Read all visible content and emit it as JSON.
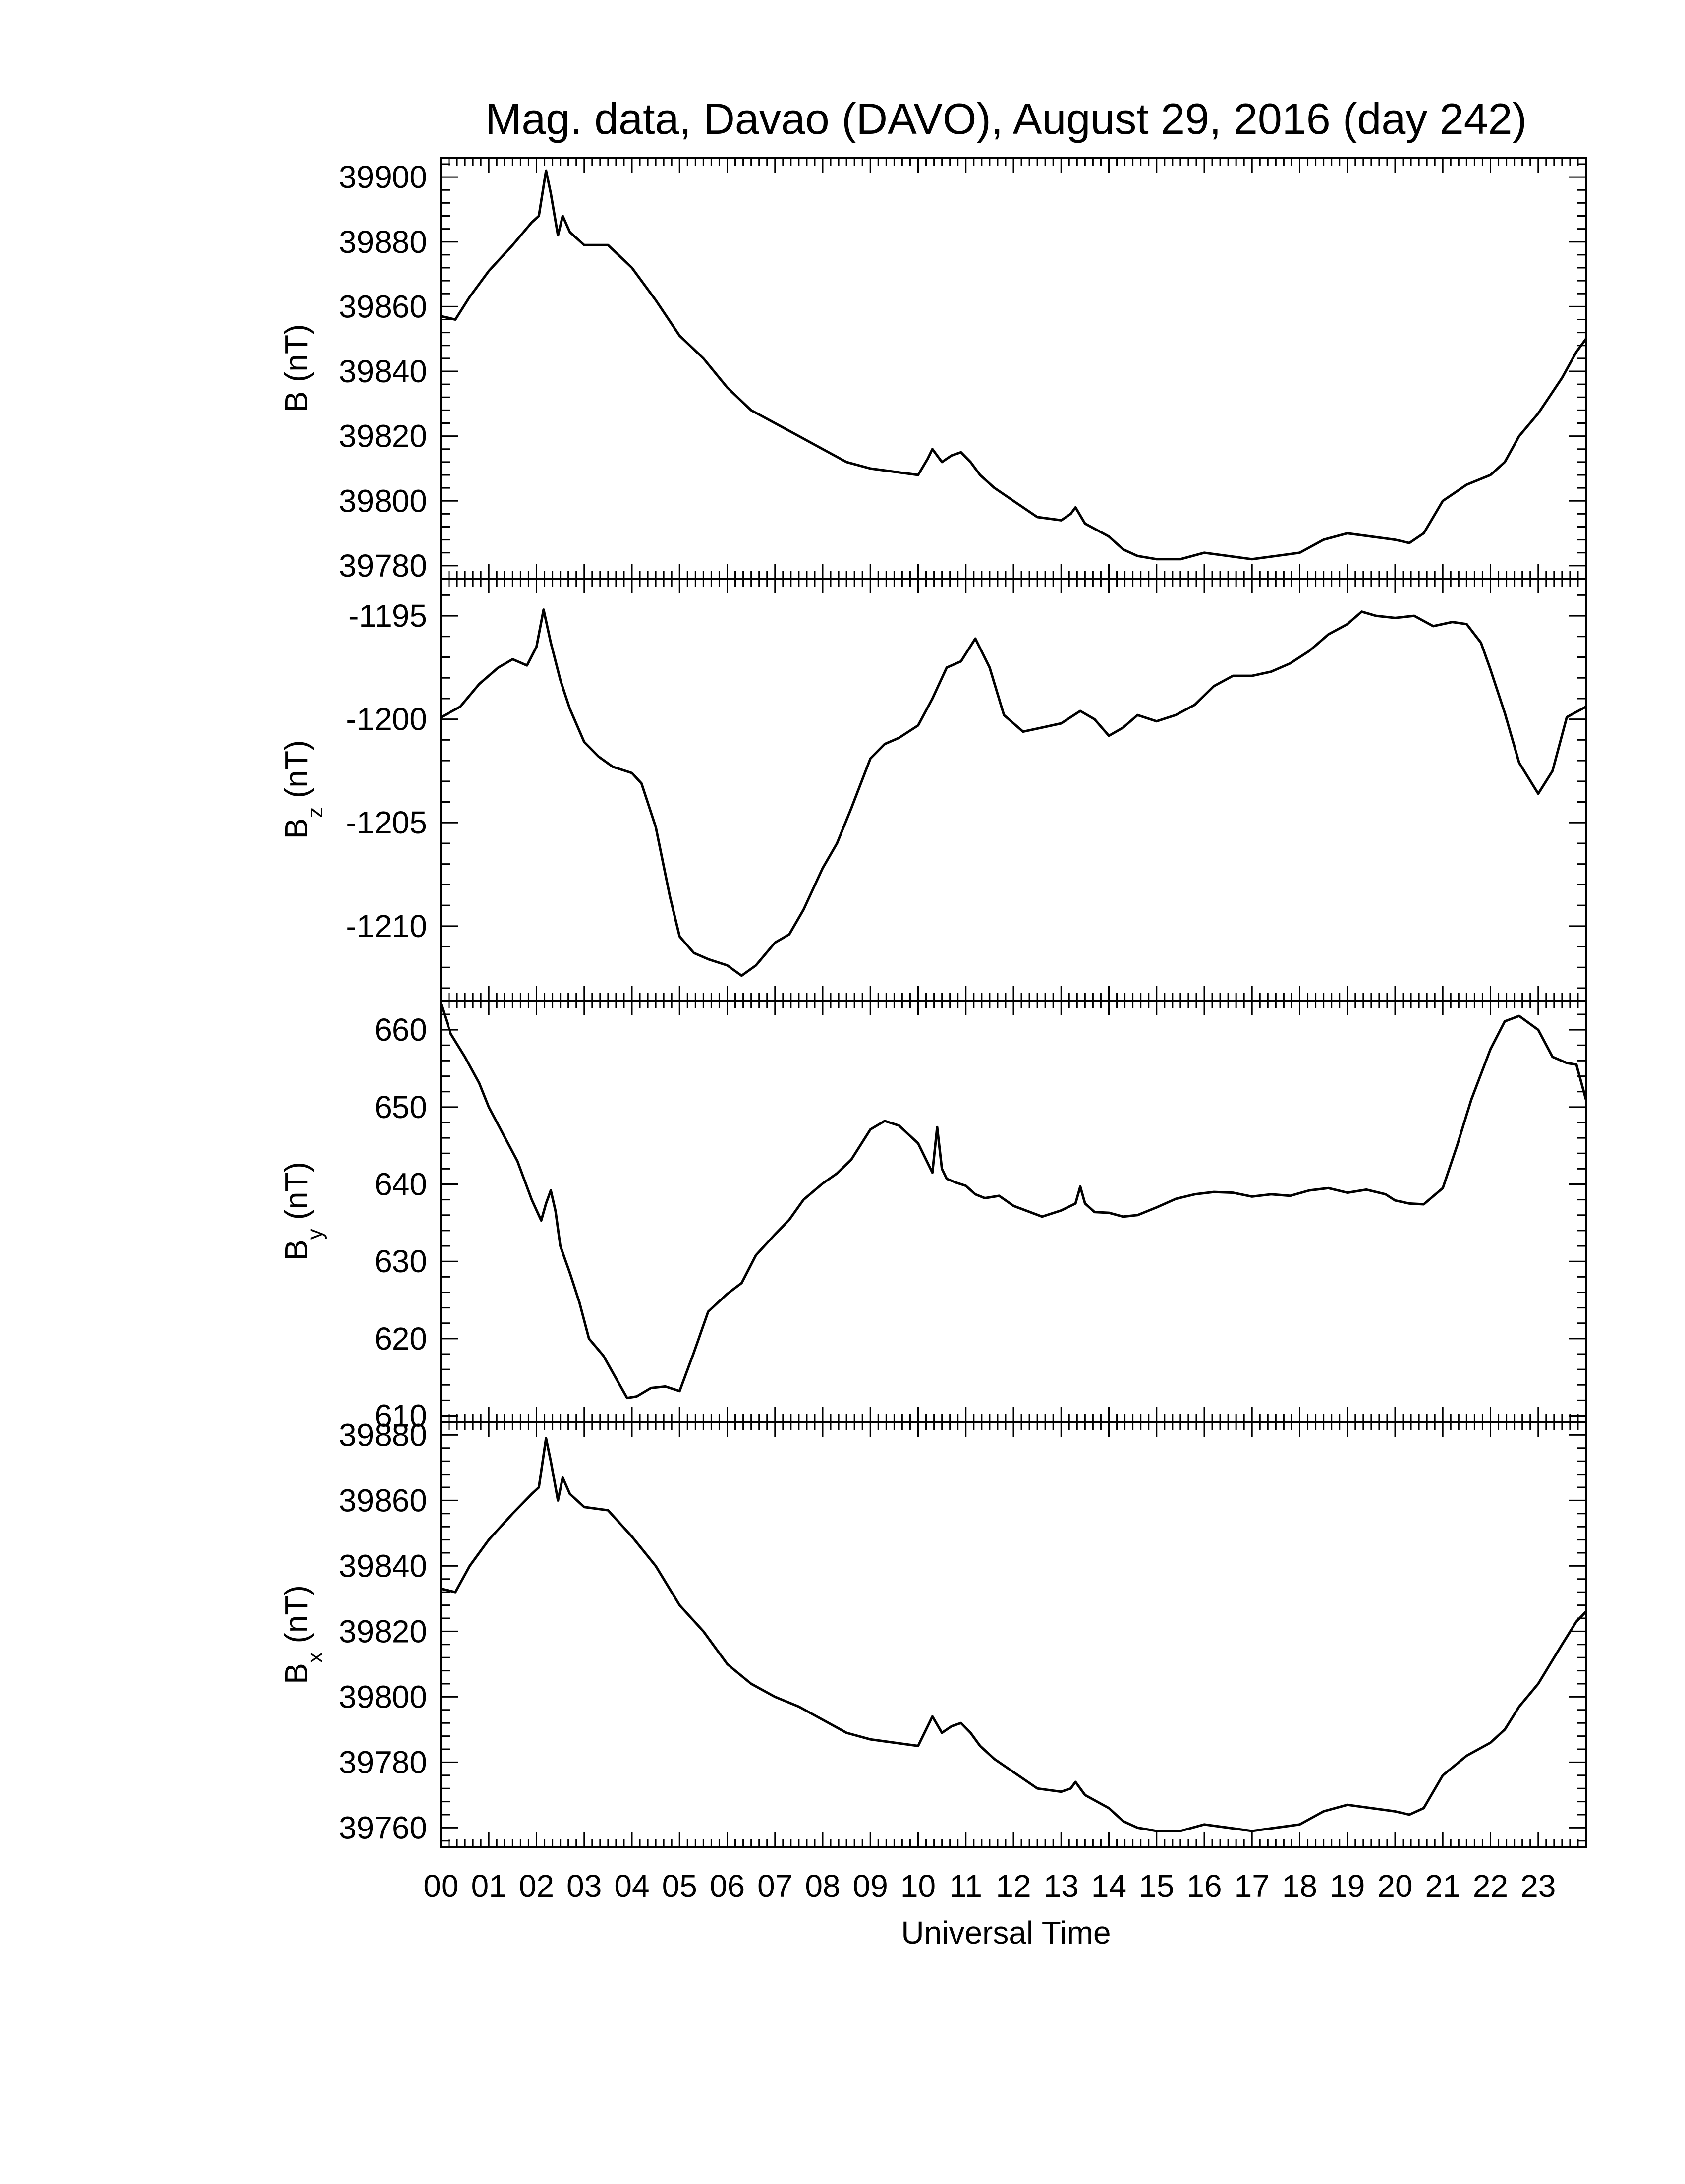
{
  "chart_data": {
    "type": "line",
    "title": "Mag. data, Davao (DAVO), August 29, 2016 (day 242)",
    "xlabel": "Universal Time",
    "x_unit": "hours UT",
    "xlim": [
      0,
      24
    ],
    "x_tick_labels": [
      "00",
      "01",
      "02",
      "03",
      "04",
      "05",
      "06",
      "07",
      "08",
      "09",
      "10",
      "11",
      "12",
      "13",
      "14",
      "15",
      "16",
      "17",
      "18",
      "19",
      "20",
      "21",
      "22",
      "23"
    ],
    "panels": [
      {
        "id": "B",
        "ylabel": "B (nT)",
        "ylabel_main": "B",
        "ylabel_sub": "",
        "ylabel_unit": " (nT)",
        "ylim": [
          39776,
          39906
        ],
        "yticks": [
          39780,
          39800,
          39820,
          39840,
          39860,
          39880,
          39900
        ],
        "series": [
          {
            "x": [
              0,
              0.3,
              0.6,
              1,
              1.5,
              1.9,
              2.05,
              2.2,
              2.3,
              2.45,
              2.55,
              2.7,
              3,
              3.5,
              4,
              4.5,
              5,
              5.5,
              6,
              6.5,
              7,
              7.5,
              8,
              8.5,
              9,
              9.5,
              10,
              10.2,
              10.3,
              10.5,
              10.7,
              10.9,
              11.1,
              11.3,
              11.6,
              12,
              12.5,
              13,
              13.2,
              13.3,
              13.5,
              14,
              14.3,
              14.6,
              15,
              15.5,
              16,
              16.5,
              17,
              17.5,
              18,
              18.5,
              19,
              19.5,
              20,
              20.3,
              20.6,
              21,
              21.5,
              22,
              22.3,
              22.6,
              23,
              23.5,
              23.8,
              24
            ],
            "y": [
              39857,
              39856,
              39863,
              39871,
              39879,
              39886,
              39888,
              39902,
              39895,
              39882,
              39888,
              39883,
              39879,
              39879,
              39872,
              39862,
              39851,
              39844,
              39835,
              39828,
              39824,
              39820,
              39816,
              39812,
              39810,
              39809,
              39808,
              39813,
              39816,
              39812,
              39814,
              39815,
              39812,
              39808,
              39804,
              39800,
              39795,
              39794,
              39796,
              39798,
              39793,
              39789,
              39785,
              39783,
              39782,
              39782,
              39784,
              39783,
              39782,
              39783,
              39784,
              39788,
              39790,
              39789,
              39788,
              39787,
              39790,
              39800,
              39805,
              39808,
              39812,
              39820,
              39827,
              39838,
              39846,
              39850
            ]
          }
        ]
      },
      {
        "id": "Bz",
        "ylabel": "Bz (nT)",
        "ylabel_main": "B",
        "ylabel_sub": "z",
        "ylabel_unit": " (nT)",
        "ylim": [
          -1213.6,
          -1193.2
        ],
        "yticks": [
          -1210,
          -1205,
          -1200,
          -1195
        ],
        "series": [
          {
            "x": [
              0,
              0.4,
              0.8,
              1.2,
              1.5,
              1.8,
              2,
              2.15,
              2.3,
              2.5,
              2.7,
              3,
              3.3,
              3.6,
              4,
              4.2,
              4.5,
              4.8,
              5,
              5.3,
              5.6,
              6,
              6.3,
              6.6,
              7,
              7.3,
              7.6,
              8,
              8.3,
              8.6,
              9,
              9.3,
              9.6,
              10,
              10.3,
              10.6,
              10.9,
              11.2,
              11.5,
              11.8,
              12.2,
              12.6,
              13,
              13.4,
              13.7,
              14,
              14.3,
              14.6,
              15,
              15.4,
              15.8,
              16.2,
              16.6,
              17,
              17.4,
              17.8,
              18.2,
              18.6,
              19,
              19.3,
              19.6,
              20,
              20.4,
              20.8,
              21.2,
              21.5,
              21.8,
              22,
              22.3,
              22.6,
              23,
              23.3,
              23.6,
              24
            ],
            "y": [
              -1199.9,
              -1199.4,
              -1198.3,
              -1197.5,
              -1197.1,
              -1197.4,
              -1196.5,
              -1194.7,
              -1196.3,
              -1198.1,
              -1199.5,
              -1201.1,
              -1201.8,
              -1202.3,
              -1202.6,
              -1203.1,
              -1205.2,
              -1208.6,
              -1210.5,
              -1211.3,
              -1211.6,
              -1211.9,
              -1212.4,
              -1211.9,
              -1210.8,
              -1210.4,
              -1209.2,
              -1207.2,
              -1206,
              -1204.3,
              -1201.9,
              -1201.2,
              -1200.9,
              -1200.3,
              -1199,
              -1197.5,
              -1197.2,
              -1196.1,
              -1197.5,
              -1199.8,
              -1200.6,
              -1200.4,
              -1200.2,
              -1199.6,
              -1200,
              -1200.8,
              -1200.4,
              -1199.8,
              -1200.1,
              -1199.8,
              -1199.3,
              -1198.4,
              -1197.9,
              -1197.9,
              -1197.7,
              -1197.3,
              -1196.7,
              -1195.9,
              -1195.4,
              -1194.8,
              -1195,
              -1195.1,
              -1195,
              -1195.5,
              -1195.3,
              -1195.4,
              -1196.3,
              -1197.6,
              -1199.7,
              -1202.1,
              -1203.6,
              -1202.5,
              -1199.9,
              -1199.4
            ]
          }
        ]
      },
      {
        "id": "By",
        "ylabel": "By (nT)",
        "ylabel_main": "B",
        "ylabel_sub": "y",
        "ylabel_unit": " (nT)",
        "ylim": [
          609.2,
          663.8
        ],
        "yticks": [
          610,
          620,
          630,
          640,
          650,
          660
        ],
        "series": [
          {
            "x": [
              0,
              0.2,
              0.5,
              0.8,
              1,
              1.3,
              1.6,
              1.9,
              2.1,
              2.2,
              2.3,
              2.4,
              2.5,
              2.7,
              2.9,
              3.1,
              3.4,
              3.7,
              3.9,
              4.1,
              4.4,
              4.7,
              5,
              5.3,
              5.6,
              6,
              6.3,
              6.6,
              7,
              7.3,
              7.6,
              8,
              8.3,
              8.6,
              9,
              9.3,
              9.6,
              10,
              10.3,
              10.4,
              10.5,
              10.6,
              10.8,
              11,
              11.2,
              11.4,
              11.7,
              12,
              12.3,
              12.6,
              13,
              13.3,
              13.4,
              13.5,
              13.7,
              14,
              14.3,
              14.6,
              15,
              15.4,
              15.8,
              16.2,
              16.6,
              17,
              17.4,
              17.8,
              18.2,
              18.6,
              19,
              19.4,
              19.8,
              20,
              20.3,
              20.6,
              21,
              21.3,
              21.6,
              22,
              22.3,
              22.6,
              23,
              23.3,
              23.6,
              23.8,
              24
            ],
            "y": [
              663.3,
              659.5,
              656.5,
              653.1,
              650,
              646.5,
              643,
              638,
              635.3,
              637.5,
              639.2,
              636.5,
              632,
              628.5,
              624.7,
              620,
              617.8,
              614.5,
              612.3,
              612.5,
              613.6,
              613.8,
              613.2,
              618.2,
              623.5,
              625.8,
              627.2,
              630.8,
              633.5,
              635.4,
              638,
              640.1,
              641.4,
              643.2,
              647.1,
              648.2,
              647.6,
              645.3,
              641.5,
              647.4,
              642,
              640.7,
              640.2,
              639.8,
              638.7,
              638.2,
              638.5,
              637.2,
              636.5,
              635.8,
              636.6,
              637.5,
              639.7,
              637.5,
              636.4,
              636.3,
              635.8,
              636,
              637,
              638.1,
              638.7,
              639,
              638.9,
              638.4,
              638.7,
              638.5,
              639.2,
              639.5,
              638.9,
              639.3,
              638.7,
              637.9,
              637.5,
              637.4,
              639.5,
              645,
              651,
              657.5,
              661.1,
              661.8,
              660,
              656.5,
              655.7,
              655.5,
              651
            ]
          }
        ]
      },
      {
        "id": "Bx",
        "ylabel": "Bx (nT)",
        "ylabel_main": "B",
        "ylabel_sub": "x",
        "ylabel_unit": " (nT)",
        "ylim": [
          39754,
          39884
        ],
        "yticks": [
          39760,
          39780,
          39800,
          39820,
          39840,
          39860,
          39880
        ],
        "series": [
          {
            "x": [
              0,
              0.3,
              0.6,
              1,
              1.5,
              1.9,
              2.05,
              2.2,
              2.3,
              2.45,
              2.55,
              2.7,
              3,
              3.5,
              4,
              4.5,
              5,
              5.5,
              6,
              6.5,
              7,
              7.5,
              8,
              8.5,
              9,
              9.5,
              10,
              10.2,
              10.3,
              10.5,
              10.7,
              10.9,
              11.1,
              11.3,
              11.6,
              12,
              12.5,
              13,
              13.2,
              13.3,
              13.5,
              14,
              14.3,
              14.6,
              15,
              15.5,
              16,
              16.5,
              17,
              17.5,
              18,
              18.5,
              19,
              19.5,
              20,
              20.3,
              20.6,
              21,
              21.5,
              22,
              22.3,
              22.6,
              23,
              23.5,
              23.8,
              24
            ],
            "y": [
              39833,
              39832,
              39840,
              39848,
              39856,
              39862,
              39864,
              39879,
              39872,
              39860,
              39867,
              39862,
              39858,
              39857,
              39849,
              39840,
              39828,
              39820,
              39810,
              39804,
              39800,
              39797,
              39793,
              39789,
              39787,
              39786,
              39785,
              39791,
              39794,
              39789,
              39791,
              39792,
              39789,
              39785,
              39781,
              39777,
              39772,
              39771,
              39772,
              39774,
              39770,
              39766,
              39762,
              39760,
              39759,
              39759,
              39761,
              39760,
              39759,
              39760,
              39761,
              39765,
              39767,
              39766,
              39765,
              39764,
              39766,
              39776,
              39782,
              39786,
              39790,
              39797,
              39804,
              39816,
              39823,
              39826
            ]
          }
        ]
      }
    ]
  }
}
